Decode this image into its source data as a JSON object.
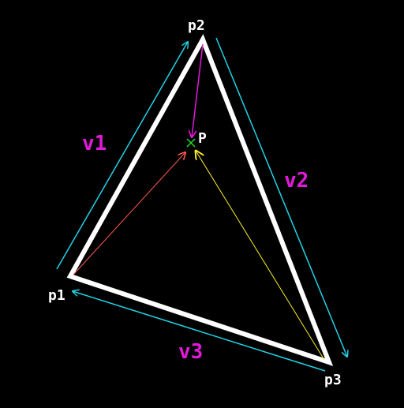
{
  "points": {
    "p1": "p1",
    "p2": "p2",
    "p3": "p3",
    "p": "P"
  },
  "vectors": {
    "v1": "v1",
    "v2": "v2",
    "v3": "v3"
  },
  "colors": {
    "background": "#000000",
    "triangle": "#ffffff",
    "edge_arrows": "#22d3e6",
    "vector_labels": "#e01ad8",
    "arrow_from_p1": "#ff5a4e",
    "arrow_from_p2": "#e01ad8",
    "arrow_from_p3": "#ffee2a",
    "point_marker": "#22dd22"
  }
}
